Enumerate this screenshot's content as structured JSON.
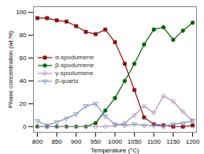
{
  "chart_data": {
    "type": "line",
    "xlabel": "Temperature (°C)",
    "ylabel": "Phase concentration (wt.%)",
    "x": [
      800,
      825,
      850,
      875,
      900,
      925,
      950,
      975,
      1000,
      1025,
      1050,
      1075,
      1100,
      1125,
      1150,
      1175,
      1200
    ],
    "series": [
      {
        "name": "α-spodumene",
        "color": "#8B1010",
        "marker": "square",
        "values": [
          95,
          95,
          93,
          92,
          88,
          83,
          81,
          85,
          74,
          55,
          32,
          8,
          2,
          1,
          0,
          0,
          1
        ]
      },
      {
        "name": "β-spodumene",
        "color": "#006400",
        "marker": "circle",
        "values": [
          0,
          0,
          0,
          0,
          0,
          0,
          3,
          14,
          25,
          40,
          55,
          72,
          85,
          87,
          76,
          84,
          91
        ]
      },
      {
        "name": "γ-spodumene",
        "color": "#b090b0",
        "marker": "open_circle",
        "values": [
          0,
          0,
          0,
          0,
          0,
          0,
          0,
          0,
          1,
          3,
          10,
          18,
          12,
          27,
          22,
          13,
          5
        ]
      },
      {
        "name": "β-quartz",
        "color": "#8090c0",
        "marker": "open_triangle_down",
        "values": [
          5,
          1,
          4,
          7,
          11,
          18,
          20,
          9,
          2,
          1,
          2,
          1,
          1,
          0,
          2,
          3,
          5
        ]
      }
    ],
    "xlim": [
      790,
      1210
    ],
    "ylim": [
      -5,
      105
    ],
    "xticks": [
      800,
      850,
      900,
      950,
      1000,
      1050,
      1100,
      1150,
      1200
    ],
    "yticks": [
      0,
      20,
      40,
      60,
      80,
      100
    ],
    "grid": false,
    "legend": "center left"
  }
}
